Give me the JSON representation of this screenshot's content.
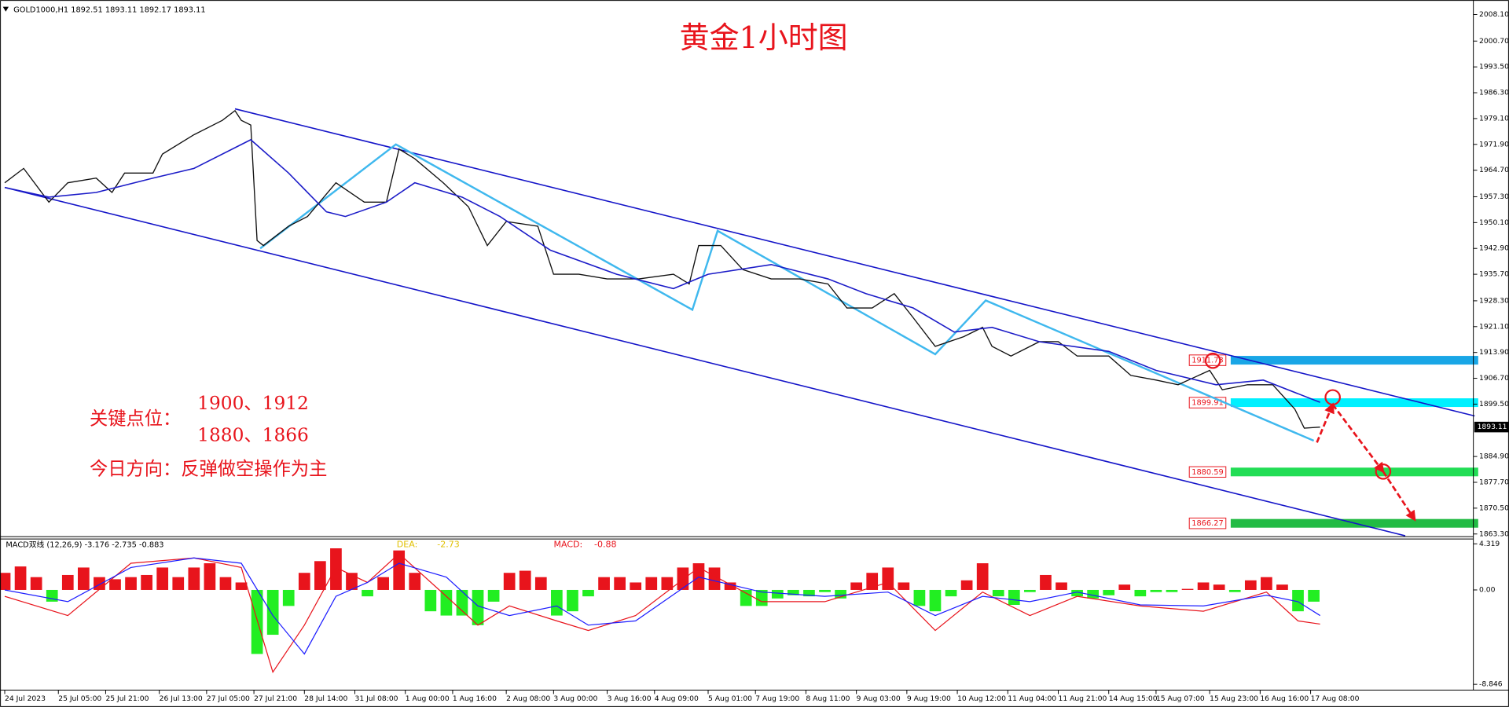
{
  "header": {
    "symbol_info": "GOLD1000,H1  1892.51 1893.11 1892.17 1893.11"
  },
  "chart_data": [
    {
      "type": "line",
      "title": "黄金1小时图",
      "annotations": {
        "key_label": "关键点位：",
        "key_levels_1": "1900、1912",
        "key_levels_2": "1880、1866",
        "direction": "今日方向：反弹做空操作为主"
      },
      "xlim": [
        -1.5,
        465.6
      ],
      "xticks": [
        {
          "value": 0,
          "label": "24 Jul 2023"
        },
        {
          "value": 17,
          "label": "25 Jul 05:00"
        },
        {
          "value": 32,
          "label": "25 Jul 21:00"
        },
        {
          "value": 49,
          "label": "26 Jul 13:00"
        },
        {
          "value": 64,
          "label": "27 Jul 05:00"
        },
        {
          "value": 79,
          "label": "27 Jul 21:00"
        },
        {
          "value": 95,
          "label": "28 Jul 14:00"
        },
        {
          "value": 111,
          "label": "31 Jul 08:00"
        },
        {
          "value": 127,
          "label": "1 Aug 00:00"
        },
        {
          "value": 142,
          "label": "1 Aug 16:00"
        },
        {
          "value": 159,
          "label": "2 Aug 08:00"
        },
        {
          "value": 174,
          "label": "3 Aug 00:00"
        },
        {
          "value": 191,
          "label": "3 Aug 16:00"
        },
        {
          "value": 206,
          "label": "4 Aug 09:00"
        },
        {
          "value": 223,
          "label": "5 Aug 01:00"
        },
        {
          "value": 238,
          "label": "7 Aug 19:00"
        },
        {
          "value": 254,
          "label": "8 Aug 11:00"
        },
        {
          "value": 270,
          "label": "9 Aug 03:00"
        },
        {
          "value": 286,
          "label": "9 Aug 19:00"
        },
        {
          "value": 302,
          "label": "10 Aug 12:00"
        },
        {
          "value": 318,
          "label": "11 Aug 04:00"
        },
        {
          "value": 334,
          "label": "11 Aug 21:00"
        },
        {
          "value": 350,
          "label": "14 Aug 15:00"
        },
        {
          "value": 365,
          "label": "15 Aug 07:00"
        },
        {
          "value": 382,
          "label": "15 Aug 23:00"
        },
        {
          "value": 398,
          "label": "16 Aug 16:00"
        },
        {
          "value": 414,
          "label": "17 Aug 08:00"
        }
      ],
      "ylim": [
        1862.7,
        2010.8
      ],
      "yticks": [
        {
          "value": 2008.1,
          "label": "2008.10"
        },
        {
          "value": 2000.7,
          "label": "2000.70"
        },
        {
          "value": 1993.5,
          "label": "1993.50"
        },
        {
          "value": 1986.3,
          "label": "1986.30"
        },
        {
          "value": 1979.1,
          "label": "1979.10"
        },
        {
          "value": 1971.9,
          "label": "1971.90"
        },
        {
          "value": 1964.7,
          "label": "1964.70"
        },
        {
          "value": 1957.3,
          "label": "1957.30"
        },
        {
          "value": 1950.1,
          "label": "1950.10"
        },
        {
          "value": 1942.9,
          "label": "1942.90"
        },
        {
          "value": 1935.7,
          "label": "1935.70"
        },
        {
          "value": 1928.3,
          "label": "1928.30"
        },
        {
          "value": 1921.1,
          "label": "1921.10"
        },
        {
          "value": 1913.9,
          "label": "1913.90"
        },
        {
          "value": 1906.7,
          "label": "1906.70"
        },
        {
          "value": 1899.5,
          "label": "1899.50"
        },
        {
          "value": 1884.9,
          "label": "1884.90"
        },
        {
          "value": 1877.7,
          "label": "1877.70"
        },
        {
          "value": 1870.5,
          "label": "1870.50"
        },
        {
          "value": 1863.3,
          "label": "1863.30"
        }
      ],
      "series": [
        {
          "color": "#111111",
          "x": [
            0,
            6,
            14,
            20,
            29,
            34,
            38,
            47,
            50,
            60,
            69,
            73,
            75,
            78,
            80,
            82,
            90,
            96,
            105,
            114,
            121,
            125,
            130,
            139,
            147,
            153,
            159,
            169,
            174,
            182,
            191,
            201,
            212,
            217,
            220,
            227,
            234,
            243,
            252,
            261,
            267,
            275,
            282,
            288,
            295,
            304,
            310,
            313,
            319,
            328,
            334,
            340,
            350,
            357,
            365,
            372,
            382,
            386,
            394,
            402,
            409,
            412,
            417
          ],
          "values": [
            1961.2,
            1965.2,
            1955.8,
            1961.2,
            1962.5,
            1958.5,
            1963.9,
            1963.9,
            1969.2,
            1974.6,
            1978.6,
            1981.3,
            1978.6,
            1977.3,
            1945.1,
            1943.7,
            1949.1,
            1951.8,
            1961.2,
            1955.8,
            1955.8,
            1970.6,
            1967.9,
            1961.2,
            1954.5,
            1943.7,
            1950.4,
            1949.1,
            1935.7,
            1935.7,
            1934.4,
            1934.4,
            1935.7,
            1933.0,
            1943.7,
            1943.7,
            1937.0,
            1934.4,
            1934.4,
            1933.0,
            1926.3,
            1926.3,
            1930.3,
            1923.6,
            1915.6,
            1918.3,
            1920.9,
            1915.6,
            1912.9,
            1916.9,
            1916.9,
            1912.9,
            1912.9,
            1907.5,
            1906.2,
            1904.9,
            1908.9,
            1903.5,
            1904.9,
            1904.9,
            1898.1,
            1892.8,
            1893.1
          ]
        },
        {
          "color": "#1c1cc8",
          "x": [
            0,
            14,
            29,
            47,
            60,
            78,
            90,
            102,
            108,
            121,
            130,
            145,
            157,
            173,
            194,
            212,
            223,
            243,
            261,
            273,
            288,
            301,
            313,
            328,
            350,
            365,
            384,
            399,
            417
          ],
          "values": [
            1959.9,
            1957.2,
            1958.5,
            1962.5,
            1965.2,
            1973.2,
            1963.9,
            1953.1,
            1951.8,
            1955.8,
            1961.2,
            1957.2,
            1951.8,
            1942.4,
            1935.7,
            1931.7,
            1935.7,
            1938.4,
            1934.4,
            1930.3,
            1926.3,
            1919.6,
            1920.9,
            1916.9,
            1914.2,
            1908.9,
            1904.9,
            1906.2,
            1900.0
          ]
        }
      ],
      "trend_lines": [
        {
          "color": "#1414c8",
          "x": [
            73,
            466
          ],
          "values": [
            1981.8,
            1896.2
          ]
        },
        {
          "color": "#1414c8",
          "x": [
            0,
            444
          ],
          "values": [
            1959.9,
            1862.8
          ]
        },
        {
          "color": "#3fb8ee",
          "x": [
            81,
            124,
            218,
            226,
            295,
            311,
            415
          ],
          "values": [
            1942.9,
            1971.9,
            1925.8,
            1947.8,
            1913.4,
            1928.4,
            1889.3
          ]
        }
      ],
      "forecast": {
        "color": "#e8141c",
        "x": [
          416,
          421,
          437,
          447
        ],
        "values": [
          1888.8,
          1899.4,
          1880.7,
          1867.3
        ]
      },
      "circles": {
        "color": "#e8141c",
        "x": [
          383,
          421,
          437
        ],
        "values": [
          1911.6,
          1901.4,
          1880.7
        ]
      },
      "levels": [
        {
          "value": 1911.73,
          "color": "#19a6e6"
        },
        {
          "value": 1899.91,
          "color": "#00f0ff"
        },
        {
          "value": 1880.59,
          "color": "#22dd55"
        },
        {
          "value": 1866.27,
          "color": "#22bb44"
        }
      ],
      "last_price": 1893.11
    },
    {
      "type": "bar",
      "title": "MACD双线 (12,26,9) -3.176 -2.735 -0.883",
      "labels": [
        {
          "name": "DEA:",
          "value": "-2.73",
          "color": "#e0c000"
        },
        {
          "name": "MACD:",
          "value": "-0.88",
          "color": "#e8141c"
        }
      ],
      "xlim": [
        -1.5,
        465.6
      ],
      "ylim": [
        -9.39,
        4.77
      ],
      "yticks": [
        4.319,
        {
          "value": 0,
          "label": "0.00"
        },
        -8.846
      ],
      "positive_color": "#e8141c",
      "negative_color": "#22ee22",
      "histogram": {
        "x": [
          0,
          5,
          10,
          15,
          20,
          25,
          30,
          35,
          40,
          45,
          50,
          55,
          60,
          65,
          70,
          75,
          80,
          85,
          90,
          95,
          100,
          105,
          110,
          115,
          120,
          125,
          130,
          135,
          140,
          145,
          150,
          155,
          160,
          165,
          170,
          175,
          180,
          185,
          190,
          195,
          200,
          205,
          210,
          215,
          220,
          225,
          230,
          235,
          240,
          245,
          250,
          255,
          260,
          265,
          270,
          275,
          280,
          285,
          290,
          295,
          300,
          305,
          310,
          315,
          320,
          325,
          330,
          335,
          340,
          345,
          350,
          355,
          360,
          365,
          370,
          375,
          380,
          385,
          390,
          395,
          400,
          405,
          410,
          415
        ],
        "values": [
          1.6,
          2.2,
          1.2,
          -1.1,
          1.4,
          2.1,
          1.2,
          1.0,
          1.2,
          1.4,
          2.1,
          1.2,
          2.1,
          2.5,
          1.2,
          0.7,
          -6.0,
          -4.2,
          -1.5,
          1.6,
          2.7,
          3.9,
          1.6,
          -0.6,
          1.2,
          3.7,
          1.6,
          -2.0,
          -2.4,
          -2.4,
          -3.3,
          -1.1,
          1.6,
          1.8,
          1.2,
          -2.4,
          -2.0,
          -0.6,
          1.2,
          1.2,
          0.7,
          1.2,
          1.2,
          2.1,
          2.5,
          2.1,
          0.7,
          -1.5,
          -1.5,
          -0.8,
          -0.5,
          -0.6,
          -0.2,
          -0.8,
          0.7,
          1.6,
          2.1,
          0.7,
          -1.5,
          -2.0,
          -0.6,
          0.9,
          2.5,
          -0.6,
          -1.4,
          -0.2,
          1.4,
          0.7,
          -0.6,
          -0.8,
          -0.5,
          0.5,
          -0.6,
          -0.2,
          -0.2,
          0.1,
          0.7,
          0.5,
          -0.2,
          0.9,
          1.2,
          0.5,
          -2.0,
          -1.1
        ]
      },
      "series": [
        {
          "color": "#e8141c",
          "x": [
            0,
            20,
            40,
            60,
            75,
            85,
            95,
            105,
            115,
            125,
            140,
            150,
            160,
            175,
            185,
            200,
            220,
            240,
            260,
            280,
            295,
            310,
            325,
            340,
            360,
            380,
            400,
            410,
            417
          ],
          "values": [
            -0.6,
            -2.4,
            2.5,
            3.0,
            2.1,
            -7.7,
            -3.3,
            2.1,
            0.7,
            3.4,
            -0.6,
            -3.3,
            -1.5,
            -2.9,
            -3.8,
            -2.4,
            2.1,
            -1.1,
            -1.1,
            0.7,
            -3.8,
            -0.2,
            -2.4,
            -0.6,
            -1.5,
            -2.0,
            -0.2,
            -2.9,
            -3.2
          ]
        },
        {
          "color": "#1c1cff",
          "x": [
            0,
            20,
            40,
            60,
            75,
            85,
            95,
            105,
            115,
            125,
            140,
            150,
            160,
            175,
            185,
            200,
            220,
            240,
            260,
            280,
            295,
            310,
            325,
            340,
            360,
            380,
            400,
            410,
            417
          ],
          "values": [
            0,
            -1.1,
            2.1,
            3.0,
            2.5,
            -2.4,
            -6.0,
            -0.6,
            0.7,
            2.5,
            1.2,
            -1.5,
            -2.4,
            -1.5,
            -3.3,
            -2.9,
            1.2,
            -0.2,
            -0.6,
            -0.2,
            -2.4,
            -0.6,
            -1.1,
            -0.2,
            -1.4,
            -1.5,
            -0.5,
            -1.1,
            -2.4
          ]
        }
      ]
    }
  ]
}
